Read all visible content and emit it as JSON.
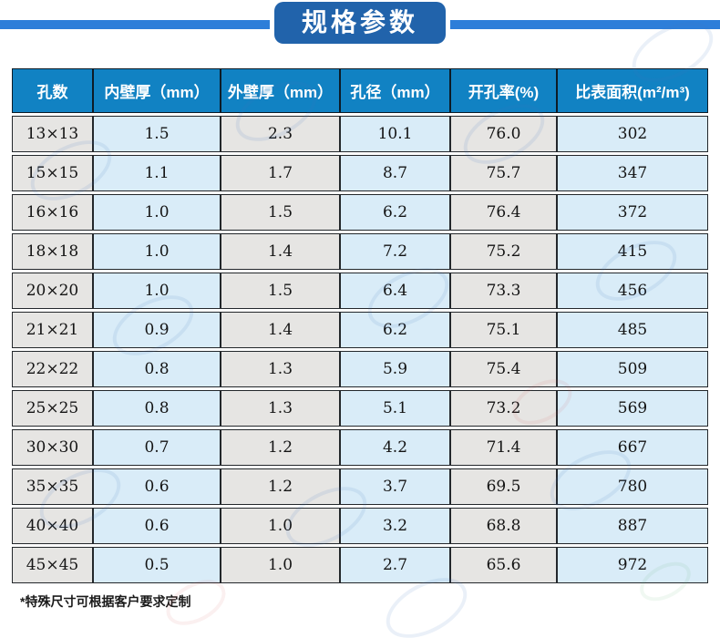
{
  "banner": {
    "title": "规格参数"
  },
  "table": {
    "headers": [
      "孔数",
      "内壁厚（mm）",
      "外壁厚（mm）",
      "孔径（mm）",
      "开孔率(%)",
      "比表面积(m²/m³)"
    ],
    "rows": [
      [
        "13×13",
        "1.5",
        "2.3",
        "10.1",
        "76.0",
        "302"
      ],
      [
        "15×15",
        "1.1",
        "1.7",
        "8.7",
        "75.7",
        "347"
      ],
      [
        "16×16",
        "1.0",
        "1.5",
        "6.2",
        "76.4",
        "372"
      ],
      [
        "18×18",
        "1.0",
        "1.4",
        "7.2",
        "75.2",
        "415"
      ],
      [
        "20×20",
        "1.0",
        "1.5",
        "6.4",
        "73.3",
        "456"
      ],
      [
        "21×21",
        "0.9",
        "1.4",
        "6.2",
        "75.1",
        "485"
      ],
      [
        "22×22",
        "0.8",
        "1.3",
        "5.9",
        "75.4",
        "509"
      ],
      [
        "25×25",
        "0.8",
        "1.3",
        "5.1",
        "73.2",
        "569"
      ],
      [
        "30×30",
        "0.7",
        "1.2",
        "4.2",
        "71.4",
        "667"
      ],
      [
        "35×35",
        "0.6",
        "1.2",
        "3.7",
        "69.5",
        "780"
      ],
      [
        "40×40",
        "0.6",
        "1.0",
        "3.2",
        "68.8",
        "887"
      ],
      [
        "45×45",
        "0.5",
        "1.0",
        "2.7",
        "65.6",
        "972"
      ]
    ]
  },
  "footnote": "*特殊尺寸可根据客户要求定制",
  "colors": {
    "banner_line": "#2d7ed9",
    "badge_bg": "#2163ab",
    "header_bg": "#1182c3",
    "cell_gray": "#e6e5e3",
    "cell_blue": "#d9ecf8",
    "cell_border": "#23272b",
    "text": "#141414"
  }
}
